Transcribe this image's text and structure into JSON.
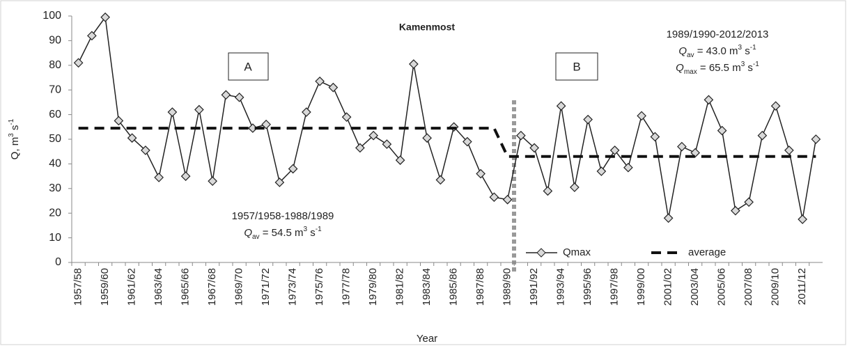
{
  "chart_data": {
    "type": "line",
    "title": "Kamenmost",
    "x_label": "Year",
    "y_label": [
      "Q, m",
      "3",
      " s",
      "-1"
    ],
    "categories": [
      "1957/58",
      null,
      "1959/60",
      null,
      "1961/62",
      null,
      "1963/64",
      null,
      "1965/66",
      null,
      "1967/68",
      null,
      "1969/70",
      null,
      "1971/72",
      null,
      "1973/74",
      null,
      "1975/76",
      null,
      "1977/78",
      null,
      "1979/80",
      null,
      "1981/82",
      null,
      "1983/84",
      null,
      "1985/86",
      null,
      "1987/88",
      null,
      "1989/90",
      null,
      "1991/92",
      null,
      "1993/94",
      null,
      "1995/96",
      null,
      "1997/98",
      null,
      "1999/00",
      null,
      "2001/02",
      null,
      "2003/04",
      null,
      "2005/06",
      null,
      "2007/08",
      null,
      "2009/10",
      null,
      "2011/12",
      null
    ],
    "series": [
      {
        "name": "Qmax",
        "color": "#222222",
        "marker_fill": "#d9d9d9",
        "values": [
          81,
          92,
          99.5,
          57.5,
          50.5,
          45.5,
          34.5,
          61,
          35,
          62,
          33,
          68,
          67,
          54.5,
          56,
          32.5,
          38,
          61,
          73.5,
          71,
          59,
          46.5,
          51.5,
          48,
          41.5,
          80.5,
          50.5,
          33.5,
          55,
          49,
          36,
          26.5,
          25.5,
          51.5,
          46.5,
          29,
          63.5,
          30.5,
          58,
          37,
          45.5,
          38.5,
          59.5,
          51,
          18,
          47,
          44.5,
          66,
          53.5,
          21,
          24.5,
          51.5,
          63.5,
          45.5,
          17.5,
          50
        ]
      },
      {
        "name": "average",
        "color": "#111111",
        "dashed": true,
        "values": [
          54.5,
          54.5,
          54.5,
          54.5,
          54.5,
          54.5,
          54.5,
          54.5,
          54.5,
          54.5,
          54.5,
          54.5,
          54.5,
          54.5,
          54.5,
          54.5,
          54.5,
          54.5,
          54.5,
          54.5,
          54.5,
          54.5,
          54.5,
          54.5,
          54.5,
          54.5,
          54.5,
          54.5,
          54.5,
          54.5,
          54.5,
          54.5,
          43.0,
          43.0,
          43.0,
          43.0,
          43.0,
          43.0,
          43.0,
          43.0,
          43.0,
          43.0,
          43.0,
          43.0,
          43.0,
          43.0,
          43.0,
          43.0,
          43.0,
          43.0,
          43.0,
          43.0,
          43.0,
          43.0,
          43.0,
          43.0
        ]
      }
    ],
    "ylim": [
      0,
      100
    ],
    "yticks": [
      0,
      10,
      20,
      30,
      40,
      50,
      60,
      70,
      80,
      90,
      100
    ],
    "grid": false,
    "legend": "lower right",
    "period_a": {
      "box": "A",
      "range": "1957/1958-1988/1989",
      "q_av": [
        "Q",
        "av",
        " = 54.5 m",
        "3",
        " s",
        "-1"
      ]
    },
    "period_b": {
      "box": "B",
      "range": "1989/1990-2012/2013",
      "q_av": [
        "Q",
        "av",
        " = 43.0 m",
        "3",
        " s",
        "-1"
      ],
      "q_max": [
        "Q",
        "max",
        " = 65.5 m",
        "3",
        " s",
        "-1"
      ]
    }
  }
}
